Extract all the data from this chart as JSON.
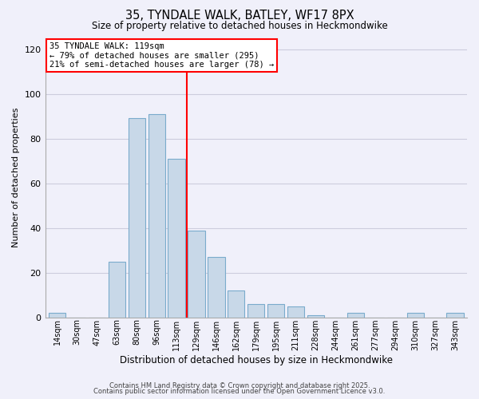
{
  "title": "35, TYNDALE WALK, BATLEY, WF17 8PX",
  "subtitle": "Size of property relative to detached houses in Heckmondwike",
  "xlabel": "Distribution of detached houses by size in Heckmondwike",
  "ylabel": "Number of detached properties",
  "bar_labels": [
    "14sqm",
    "30sqm",
    "47sqm",
    "63sqm",
    "80sqm",
    "96sqm",
    "113sqm",
    "129sqm",
    "146sqm",
    "162sqm",
    "179sqm",
    "195sqm",
    "211sqm",
    "228sqm",
    "244sqm",
    "261sqm",
    "277sqm",
    "294sqm",
    "310sqm",
    "327sqm",
    "343sqm"
  ],
  "bar_values": [
    2,
    0,
    0,
    25,
    89,
    91,
    71,
    39,
    27,
    12,
    6,
    6,
    5,
    1,
    0,
    2,
    0,
    0,
    2,
    0,
    2
  ],
  "bar_color": "#c8d8e8",
  "bar_edgecolor": "#7aabcc",
  "ylim": [
    0,
    125
  ],
  "yticks": [
    0,
    20,
    40,
    60,
    80,
    100,
    120
  ],
  "vline_x": 6.5,
  "vline_color": "red",
  "annotation_title": "35 TYNDALE WALK: 119sqm",
  "annotation_line1": "← 79% of detached houses are smaller (295)",
  "annotation_line2": "21% of semi-detached houses are larger (78) →",
  "footer1": "Contains HM Land Registry data © Crown copyright and database right 2025.",
  "footer2": "Contains public sector information licensed under the Open Government Licence v3.0.",
  "background_color": "#f0f0fa",
  "grid_color": "#ccccdd"
}
